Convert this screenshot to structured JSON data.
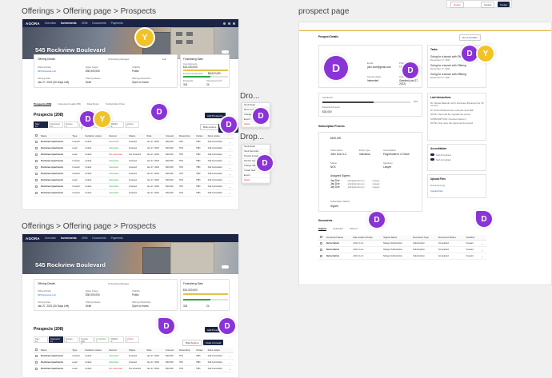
{
  "labels": {
    "top_left": "Offerings > Offering page > Prospects",
    "bottom_left": "Offerings > Offering page > Prospects",
    "right": "prospect page",
    "dropdown_1": "Dro...",
    "dropdown_2": "Drop..."
  },
  "nav": {
    "logo": "AGORA",
    "items": [
      "Overview",
      "Investments",
      "CRM",
      "Documents",
      "Payments"
    ],
    "active_index": 1
  },
  "offering": {
    "title": "545 Rockview Boulevard",
    "details_label": "Offering Details",
    "manager_label": "Onboarding Manager",
    "edit_label": "Edit",
    "fields": [
      {
        "label": "Offered Entity",
        "value": "545 Rockview LLC"
      },
      {
        "label": "Raise Target",
        "value": "$30,000,000"
      },
      {
        "label": "Visibility",
        "value": "Public"
      },
      {
        "label": "Closing Date",
        "value": "Jan 27, 2022 (30 Days Left)"
      },
      {
        "label": "Offering Status",
        "value": "Draft"
      },
      {
        "label": "Offering Restriction",
        "value": "Open to invest"
      }
    ],
    "fundraising_label": "Fundraising Stats",
    "commitments_label": "Commitments",
    "commitments_value": "$14,000,000",
    "fund_commitments_label": "Fund Commitments",
    "fund_commitments_value": "$8,000,000",
    "prospects_label": "Prospects",
    "prospects_value": "324",
    "interested_label": "Interested Limit",
    "interested_value": "24"
  },
  "tabs": [
    "Prospects (208)",
    "Interested Leads (98)",
    "Data Room",
    "Subscription Flow"
  ],
  "prospects": {
    "title": "Prospects (208)",
    "add_button": "Add Prospects",
    "bulk_button": "Bulk Actions",
    "invite_button": "Invite to Invest",
    "filters": [
      {
        "label": "New",
        "count": "12"
      },
      {
        "label": "Interested",
        "count": "12"
      },
      {
        "label": "Nurture",
        "count": "2"
      },
      {
        "label": "Counter Sign",
        "count": "3"
      },
      {
        "label": "Completed",
        "count": "7"
      },
      {
        "label": "Waitlist",
        "count": "2"
      },
      {
        "label": "Archive",
        "count": "7"
      }
    ],
    "columns": [
      "",
      "Name",
      "Type",
      "Invitation status",
      "Interest",
      "Status",
      "Date",
      "Amount",
      "Ownership",
      "Invites",
      "Subs status",
      ""
    ],
    "rows": [
      [
        "Rockview Apartments",
        "Investor",
        "Invited",
        "Interested",
        "Granted",
        "Jan 27, 2022",
        "$30,000",
        "70%",
        "TBD",
        "Self Accredited"
      ],
      [
        "Rockview Apartments",
        "Lead",
        "Invited",
        "Interested",
        "Granted",
        "Jan 27, 2022",
        "$30,000",
        "70%",
        "TBD",
        "Self Accredited"
      ],
      [
        "Rockview Apartments",
        "Lead",
        "Invited",
        "Not interested",
        "Not Granted",
        "Jan 27, 2022",
        "$30,000",
        "70%",
        "TBD",
        "Self Accredited"
      ],
      [
        "Rockview Apartments",
        "Investor",
        "Invited",
        "Interested",
        "Granted",
        "Jan 27, 2022",
        "$30,000",
        "70%",
        "TBD",
        "Self Accredited"
      ],
      [
        "Rockview Apartments",
        "Investor",
        "Invited",
        "Interested",
        "Granted",
        "Jan 27, 2022",
        "$30,000",
        "70%",
        "TBD",
        "Self Accredited"
      ],
      [
        "Rockview Apartments",
        "Investor",
        "Invited",
        "Interested",
        "Granted",
        "Jan 27, 2022",
        "$30,000",
        "70%",
        "TBD",
        "Self Accredited"
      ],
      [
        "Rockview Apartments",
        "Lead",
        "Invited",
        "Interested",
        "Granted",
        "Jan 27, 2022",
        "$30,000",
        "70%",
        "TBD",
        "Self Accredited"
      ],
      [
        "Rockview Apartments",
        "Investor",
        "Invited",
        "Interested",
        "Granted",
        "Jan 27, 2022",
        "$30,000",
        "70%",
        "TBD",
        "Self Accredited"
      ],
      [
        "Rockview Apartments",
        "Investor",
        "Invited",
        "Interested",
        "Granted",
        "Jan 27, 2022",
        "$30,000",
        "70%",
        "TBD",
        "Self Accredited"
      ]
    ]
  },
  "dropdown_menu_1": [
    "Send Email",
    "Move to Stage",
    "Change Status",
    "Export",
    "Delete"
  ],
  "dropdown_menu_2": [
    "Send Email",
    "Send Reminder",
    "Provide Access",
    "Revoke Access",
    "Change Status",
    "Create Task",
    "Export",
    "Delete"
  ],
  "prospect_page": {
    "title": "Prospect Details",
    "goto_label": "Go to Contact",
    "top_buttons": [
      "Delete",
      "Cancel",
      "Create"
    ],
    "email_label": "Email",
    "email_value": "john.doe@gmail.com",
    "phone_label": "Phone",
    "phone_value": "+1(617) 5000-000",
    "interest_label": "Interest status",
    "interest_value": "Interested",
    "stage_label": "Invitation status",
    "stage_value": "Granted (Jan 27, 2022)",
    "likelihood_label": "Likelihood",
    "likelihood_value": "30%",
    "amount_label": "Expected Amount",
    "amount_value": "$30,000",
    "tasks_label": "Tasks",
    "tasks": [
      {
        "text": "Going for a launch with Offering",
        "date": "December 17, 2021",
        "tag": "Overdue"
      },
      {
        "text": "Going for a launch with Offering",
        "date": "December 17, 2021",
        "tag": ""
      },
      {
        "text": "Going for a launch with Offering",
        "date": "December 17, 2021",
        "tag": ""
      }
    ],
    "activities_label": "Last Interactions",
    "activities": [
      "Mr. Nikolai Balandin will in Rockview Boulevard for 30 min slot",
      "Dr. Robert Belland had a call with Jane Ball",
      "NOTE: Client did the upgrade the period",
      "SUBSCRIPTION: Checked status in",
      "NOTE: Note Jane has approved the period"
    ],
    "subscription_label": "Subscription Process",
    "sub_amount": "$150,000",
    "sub_fields": [
      {
        "label": "Subscription",
        "value": "John Doe LLC"
      },
      {
        "label": "Entity Type",
        "value": "Individual"
      },
      {
        "label": "Accreditation",
        "value": "Fingerholder's 4 Check"
      },
      {
        "label": "Status",
        "value": "NCK"
      },
      {
        "label": "Signatory",
        "value": "Lawyer"
      }
    ],
    "signers_label": "Assigned Signers",
    "signers": [
      {
        "name": "Jay Doe",
        "email": "john@gmail.com",
        "role": "Lawyer"
      },
      {
        "name": "Jay Doe",
        "email": "john@gmail.com",
        "role": "Lawyer"
      },
      {
        "name": "Jay Doe",
        "email": "john@gmail.com",
        "role": "Lawyer"
      }
    ],
    "sub_status_label": "Subscription Status",
    "sub_status_value": "Signed",
    "accreditation_label": "Accreditation",
    "accreditation_items": [
      "Self Accredited",
      "Self Accredited"
    ],
    "uploads_label": "Upload Files",
    "uploads": [
      "Document.png",
      "Upload Files"
    ],
    "documents_label": "Documents",
    "doc_tabs": [
      "Signed",
      "Uploaded",
      "Shared"
    ],
    "doc_columns": [
      "",
      "Document Name",
      "Subscription Entity",
      "Signed Name",
      "Document Type",
      "Document Status",
      "Visibility",
      ""
    ],
    "doc_rows": [
      [
        "Subscription",
        "John's LLC",
        "Mango Subscription",
        "Subscription",
        "Completed",
        "Investor"
      ],
      [
        "Subscription",
        "John's LLC",
        "Mango Subscription",
        "Subscription",
        "Completed",
        "Investor"
      ],
      [
        "Subscription",
        "John's LLC",
        "Mango Subscription",
        "Subscription",
        "Completed",
        "Investor"
      ]
    ]
  },
  "avatars": {
    "d": "D",
    "y": "Y"
  },
  "colors": {
    "navy": "#1b2444",
    "purple": "#8a33d6",
    "yellow": "#f2c326",
    "green": "#2aa845"
  }
}
